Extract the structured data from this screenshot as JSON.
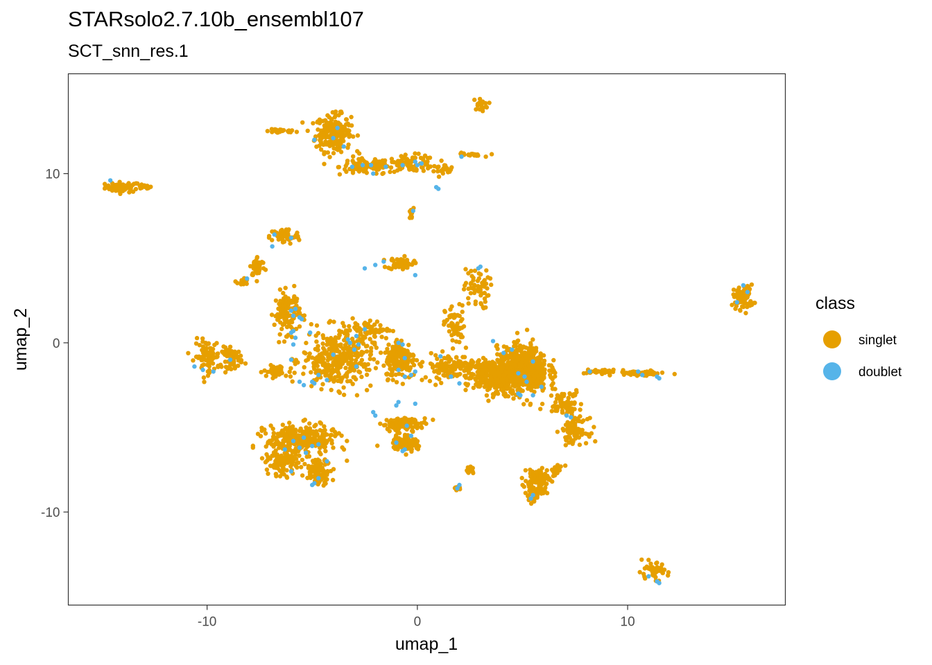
{
  "chart_data": {
    "type": "scatter",
    "title": "STARsolo2.7.10b_ensembl107",
    "subtitle": "SCT_snn_res.1",
    "xlabel": "umap_1",
    "ylabel": "umap_2",
    "xlim": [
      -16.6,
      17.5
    ],
    "ylim": [
      -15.5,
      15.9
    ],
    "x_ticks": [
      -10,
      0,
      10
    ],
    "x_tick_labels": [
      "-10",
      "0",
      "10"
    ],
    "y_ticks": [
      -10,
      0,
      10
    ],
    "y_tick_labels": [
      "-10",
      "0",
      "10"
    ],
    "grid": false,
    "legend": {
      "title": "class",
      "position": "right",
      "entries": [
        {
          "label": "singlet",
          "color": "#E69F00"
        },
        {
          "label": "doublet",
          "color": "#56B4E9"
        }
      ]
    },
    "series": [
      {
        "name": "singlet",
        "color": "#E69F00",
        "clusters": [
          {
            "center": [
              -14.0,
              9.2
            ],
            "spread": [
              0.7,
              0.25
            ],
            "n": 60
          },
          {
            "center": [
              -13.0,
              9.2
            ],
            "spread": [
              0.3,
              0.1
            ],
            "n": 15
          },
          {
            "center": [
              -6.5,
              12.5
            ],
            "spread": [
              0.6,
              0.1
            ],
            "n": 30
          },
          {
            "center": [
              -4.0,
              12.4
            ],
            "spread": [
              0.7,
              0.9
            ],
            "n": 220
          },
          {
            "center": [
              -2.5,
              10.4
            ],
            "spread": [
              1.0,
              0.4
            ],
            "n": 90
          },
          {
            "center": [
              -0.3,
              10.6
            ],
            "spread": [
              1.0,
              0.4
            ],
            "n": 90
          },
          {
            "center": [
              1.2,
              10.3
            ],
            "spread": [
              0.5,
              0.2
            ],
            "n": 25
          },
          {
            "center": [
              2.4,
              11.1
            ],
            "spread": [
              0.6,
              0.1
            ],
            "n": 20
          },
          {
            "center": [
              3.0,
              14.1
            ],
            "spread": [
              0.3,
              0.3
            ],
            "n": 20
          },
          {
            "center": [
              -0.3,
              7.6
            ],
            "spread": [
              0.1,
              0.3
            ],
            "n": 10
          },
          {
            "center": [
              -6.3,
              6.3
            ],
            "spread": [
              0.6,
              0.4
            ],
            "n": 60
          },
          {
            "center": [
              -7.6,
              4.5
            ],
            "spread": [
              0.3,
              0.5
            ],
            "n": 40
          },
          {
            "center": [
              -8.3,
              3.6
            ],
            "spread": [
              0.2,
              0.2
            ],
            "n": 20
          },
          {
            "center": [
              -0.8,
              4.7
            ],
            "spread": [
              0.5,
              0.3
            ],
            "n": 60
          },
          {
            "center": [
              2.8,
              3.2
            ],
            "spread": [
              0.5,
              1.0
            ],
            "n": 60
          },
          {
            "center": [
              1.8,
              1.0
            ],
            "spread": [
              0.4,
              1.0
            ],
            "n": 60
          },
          {
            "center": [
              15.5,
              2.7
            ],
            "spread": [
              0.4,
              0.6
            ],
            "n": 80
          },
          {
            "center": [
              -10.0,
              -0.8
            ],
            "spread": [
              0.5,
              0.8
            ],
            "n": 90
          },
          {
            "center": [
              -8.8,
              -0.9
            ],
            "spread": [
              0.4,
              0.5
            ],
            "n": 60
          },
          {
            "center": [
              -6.2,
              1.8
            ],
            "spread": [
              0.5,
              1.0
            ],
            "n": 120
          },
          {
            "center": [
              -3.8,
              -1.0
            ],
            "spread": [
              1.4,
              1.4
            ],
            "n": 350
          },
          {
            "center": [
              -6.7,
              -1.7
            ],
            "spread": [
              0.5,
              0.3
            ],
            "n": 40
          },
          {
            "center": [
              -2.5,
              0.8
            ],
            "spread": [
              1.0,
              0.4
            ],
            "n": 60
          },
          {
            "center": [
              -0.8,
              -0.9
            ],
            "spread": [
              0.6,
              1.0
            ],
            "n": 180
          },
          {
            "center": [
              1.5,
              -1.4
            ],
            "spread": [
              1.0,
              0.6
            ],
            "n": 120
          },
          {
            "center": [
              3.5,
              -2.0
            ],
            "spread": [
              1.0,
              0.8
            ],
            "n": 260
          },
          {
            "center": [
              5.0,
              -1.6
            ],
            "spread": [
              1.0,
              1.1
            ],
            "n": 700
          },
          {
            "center": [
              7.0,
              -3.5
            ],
            "spread": [
              0.7,
              0.6
            ],
            "n": 70
          },
          {
            "center": [
              7.5,
              -5.2
            ],
            "spread": [
              0.5,
              0.6
            ],
            "n": 80
          },
          {
            "center": [
              8.8,
              -1.7
            ],
            "spread": [
              0.7,
              0.1
            ],
            "n": 40
          },
          {
            "center": [
              10.6,
              -1.8
            ],
            "spread": [
              1.0,
              0.1
            ],
            "n": 60
          },
          {
            "center": [
              -5.5,
              -5.7
            ],
            "spread": [
              1.4,
              0.7
            ],
            "n": 300
          },
          {
            "center": [
              -6.4,
              -7.1
            ],
            "spread": [
              0.6,
              0.6
            ],
            "n": 120
          },
          {
            "center": [
              -4.7,
              -7.6
            ],
            "spread": [
              0.5,
              0.6
            ],
            "n": 100
          },
          {
            "center": [
              -0.6,
              -4.8
            ],
            "spread": [
              0.9,
              0.3
            ],
            "n": 100
          },
          {
            "center": [
              -0.6,
              -5.9
            ],
            "spread": [
              0.5,
              0.4
            ],
            "n": 100
          },
          {
            "center": [
              5.7,
              -8.1
            ],
            "spread": [
              0.5,
              0.6
            ],
            "n": 100
          },
          {
            "center": [
              5.5,
              -9.0
            ],
            "spread": [
              0.3,
              0.4
            ],
            "n": 40
          },
          {
            "center": [
              6.6,
              -7.5
            ],
            "spread": [
              0.3,
              0.3
            ],
            "n": 20
          },
          {
            "center": [
              2.5,
              -7.5
            ],
            "spread": [
              0.2,
              0.2
            ],
            "n": 12
          },
          {
            "center": [
              1.9,
              -8.6
            ],
            "spread": [
              0.15,
              0.1
            ],
            "n": 8
          },
          {
            "center": [
              11.2,
              -13.5
            ],
            "spread": [
              0.6,
              0.4
            ],
            "n": 50
          }
        ]
      },
      {
        "name": "doublet",
        "color": "#56B4E9",
        "points": [
          [
            -14.6,
            9.6
          ],
          [
            -4.0,
            12.1
          ],
          [
            -3.5,
            11.6
          ],
          [
            -3.8,
            12.7
          ],
          [
            -4.9,
            12.0
          ],
          [
            -2.6,
            10.5
          ],
          [
            -3.1,
            10.4
          ],
          [
            -1.5,
            10.4
          ],
          [
            -0.7,
            10.5
          ],
          [
            -0.1,
            10.7
          ],
          [
            0.0,
            10.5
          ],
          [
            0.2,
            10.6
          ],
          [
            -2.1,
            10.0
          ],
          [
            -2.2,
            10.5
          ],
          [
            0.9,
            9.2
          ],
          [
            1.0,
            9.1
          ],
          [
            2.1,
            11.0
          ],
          [
            -0.2,
            7.8
          ],
          [
            -6.0,
            6.2
          ],
          [
            -6.8,
            6.4
          ],
          [
            -8.1,
            3.8
          ],
          [
            -6.9,
            5.7
          ],
          [
            -2.5,
            4.4
          ],
          [
            -2.0,
            4.6
          ],
          [
            -1.6,
            4.8
          ],
          [
            -0.1,
            4.0
          ],
          [
            2.9,
            4.4
          ],
          [
            3.0,
            4.5
          ],
          [
            15.5,
            3.4
          ],
          [
            15.7,
            3.0
          ],
          [
            15.2,
            2.4
          ],
          [
            -10.2,
            -1.6
          ],
          [
            -10.6,
            -1.4
          ],
          [
            -8.9,
            -1.0
          ],
          [
            -9.7,
            -1.7
          ],
          [
            -5.8,
            2.0
          ],
          [
            -5.6,
            1.5
          ],
          [
            -5.9,
            1.6
          ],
          [
            -6.0,
            1.9
          ],
          [
            -5.5,
            1.4
          ],
          [
            -6.0,
            0.6
          ],
          [
            -5.8,
            0.3
          ],
          [
            -5.9,
            -0.1
          ],
          [
            -2.5,
            0.8
          ],
          [
            -2.8,
            -0.1
          ],
          [
            -3.0,
            -0.4
          ],
          [
            -3.2,
            0.0
          ],
          [
            -2.9,
            0.4
          ],
          [
            -4.3,
            -2.2
          ],
          [
            -4.7,
            -1.9
          ],
          [
            -5.6,
            -2.3
          ],
          [
            -6.0,
            -1.0
          ],
          [
            -5.1,
            0.6
          ],
          [
            -5.9,
            0.7
          ],
          [
            -4.0,
            -0.7
          ],
          [
            -2.9,
            -1.4
          ],
          [
            -3.3,
            0.2
          ],
          [
            -5.0,
            -2.3
          ],
          [
            -4.9,
            -2.4
          ],
          [
            -5.4,
            -2.5
          ],
          [
            -0.9,
            0.0
          ],
          [
            -0.7,
            -0.1
          ],
          [
            -0.6,
            -0.9
          ],
          [
            -0.9,
            -1.6
          ],
          [
            -0.1,
            -1.7
          ],
          [
            -0.3,
            -1.9
          ],
          [
            -0.6,
            -2.0
          ],
          [
            1.1,
            -0.8
          ],
          [
            1.6,
            -2.0
          ],
          [
            2.0,
            -2.4
          ],
          [
            -0.1,
            -3.6
          ],
          [
            -0.9,
            -3.5
          ],
          [
            -1.0,
            -3.7
          ],
          [
            3.6,
            0.1
          ],
          [
            4.1,
            -0.6
          ],
          [
            4.5,
            -0.4
          ],
          [
            4.8,
            -1.8
          ],
          [
            5.5,
            -1.1
          ],
          [
            5.1,
            -2.0
          ],
          [
            5.2,
            -2.3
          ],
          [
            5.9,
            -2.6
          ],
          [
            4.8,
            -3.0
          ],
          [
            4.9,
            -3.1
          ],
          [
            5.5,
            -3.1
          ],
          [
            7.1,
            -4.3
          ],
          [
            7.3,
            -4.4
          ],
          [
            8.2,
            -1.7
          ],
          [
            10.5,
            -1.7
          ],
          [
            10.7,
            -1.9
          ],
          [
            11.4,
            -2.0
          ],
          [
            11.5,
            -2.1
          ],
          [
            -5.4,
            -5.6
          ],
          [
            -5.9,
            -5.8
          ],
          [
            -5.0,
            -6.1
          ],
          [
            -5.6,
            -6.2
          ],
          [
            -4.7,
            -6.0
          ],
          [
            -5.3,
            -6.5
          ],
          [
            -6.3,
            -6.3
          ],
          [
            -4.3,
            -7.0
          ],
          [
            -4.7,
            -8.0
          ],
          [
            -4.9,
            -8.3
          ],
          [
            -5.0,
            -8.4
          ],
          [
            -6.0,
            -7.6
          ],
          [
            -0.5,
            -4.9
          ],
          [
            -0.3,
            -5.5
          ],
          [
            -0.6,
            -6.3
          ],
          [
            -0.7,
            -6.4
          ],
          [
            -1.0,
            -5.9
          ],
          [
            -2.1,
            -4.1
          ],
          [
            -2.0,
            -4.3
          ],
          [
            5.4,
            -9.2
          ],
          [
            5.5,
            -9.0
          ],
          [
            1.9,
            -8.6
          ],
          [
            2.0,
            -8.4
          ],
          [
            11.0,
            -13.8
          ],
          [
            11.4,
            -14.1
          ],
          [
            11.5,
            -14.2
          ]
        ]
      }
    ]
  }
}
